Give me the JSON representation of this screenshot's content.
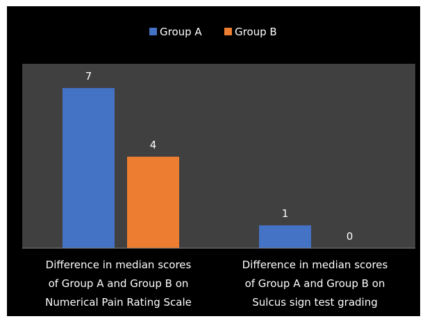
{
  "chart_data": {
    "type": "bar",
    "title": "",
    "xlabel": "",
    "ylabel": "",
    "ylim": [
      0,
      8
    ],
    "grid": false,
    "legend_position": "top",
    "categories": [
      [
        "Difference in median scores",
        "of Group A and Group B on",
        "Numerical Pain Rating Scale"
      ],
      [
        "Difference in median scores",
        "of Group A and Group B on",
        "Sulcus sign test grading"
      ]
    ],
    "series": [
      {
        "name": "Group A",
        "color": "#4472C4",
        "values": [
          7,
          1
        ]
      },
      {
        "name": "Group B",
        "color": "#ED7D31",
        "values": [
          4,
          0
        ]
      }
    ],
    "plot_background": "#404040",
    "background": "#000000"
  }
}
